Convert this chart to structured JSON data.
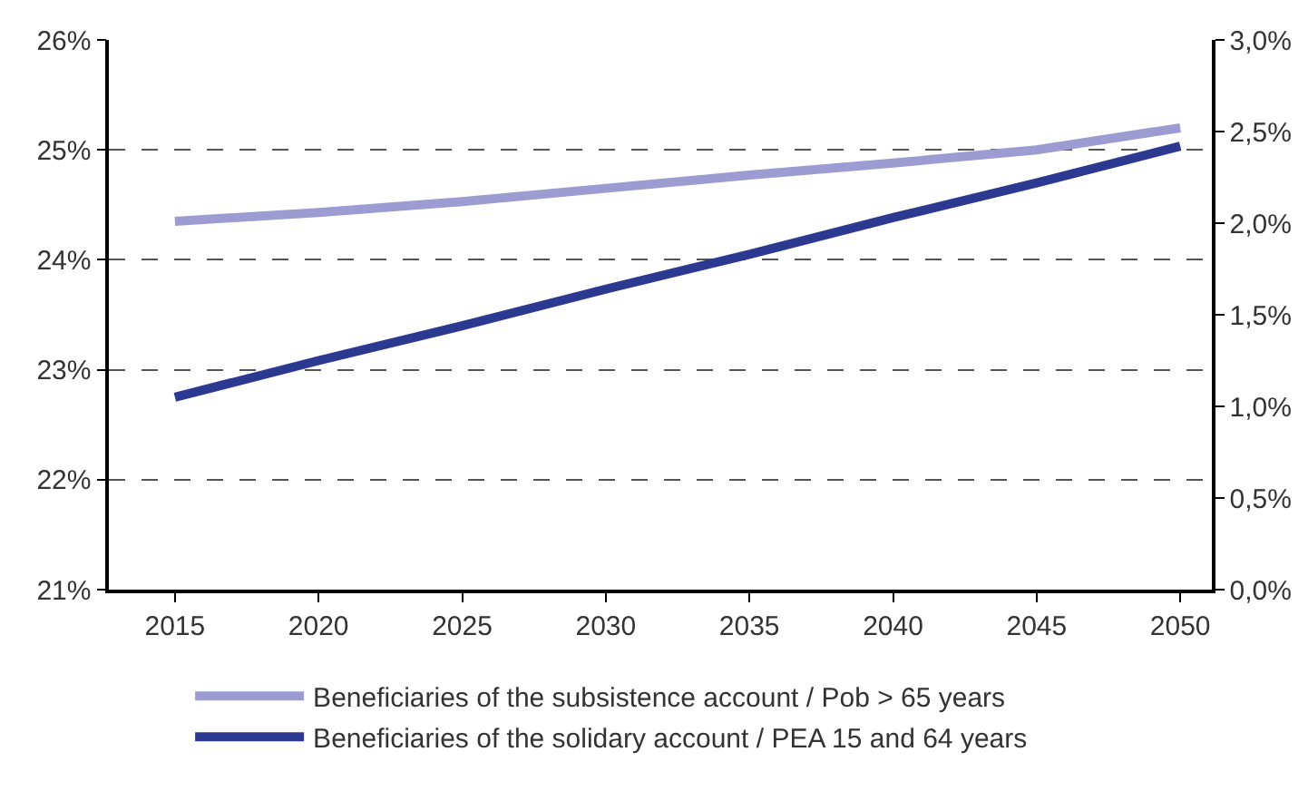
{
  "chart_data": {
    "type": "line",
    "x": [
      2015,
      2020,
      2025,
      2030,
      2035,
      2040,
      2045,
      2050
    ],
    "xlim": [
      2012.7,
      2051.1
    ],
    "xticks": [
      2015,
      2020,
      2025,
      2030,
      2035,
      2040,
      2045,
      2050
    ],
    "series": [
      {
        "name": "Beneficiaries of the subsistence account / Pob > 65 years",
        "color": "#9d9bd1",
        "values": [
          24.35,
          24.43,
          24.53,
          24.65,
          24.77,
          24.88,
          25.0,
          25.2
        ]
      },
      {
        "name": "Beneficiaries of the solidary account / PEA 15 and 64 years",
        "color": "#2b3990",
        "axis": "y2",
        "values": [
          1.05,
          1.25,
          1.44,
          1.64,
          1.83,
          2.03,
          2.22,
          2.42
        ]
      }
    ],
    "ylim": [
      21,
      26
    ],
    "yticks": [
      {
        "value": 21,
        "label": "21%"
      },
      {
        "value": 22,
        "label": "22%"
      },
      {
        "value": 23,
        "label": "23%"
      },
      {
        "value": 24,
        "label": "24%"
      },
      {
        "value": 25,
        "label": "25%"
      },
      {
        "value": 26,
        "label": "26%"
      }
    ],
    "y2lim": [
      0,
      3
    ],
    "y2ticks": [
      {
        "value": 0,
        "label": "0,0%"
      },
      {
        "value": 0.5,
        "label": "0,5%"
      },
      {
        "value": 1,
        "label": "1,0%"
      },
      {
        "value": 1.5,
        "label": "1,5%"
      },
      {
        "value": 2,
        "label": "2,0%"
      },
      {
        "value": 2.5,
        "label": "2,5%"
      },
      {
        "value": 3,
        "label": "3,0%"
      }
    ],
    "grid": "y",
    "legend": "bottom",
    "marker": "none",
    "line_style": "solid"
  }
}
